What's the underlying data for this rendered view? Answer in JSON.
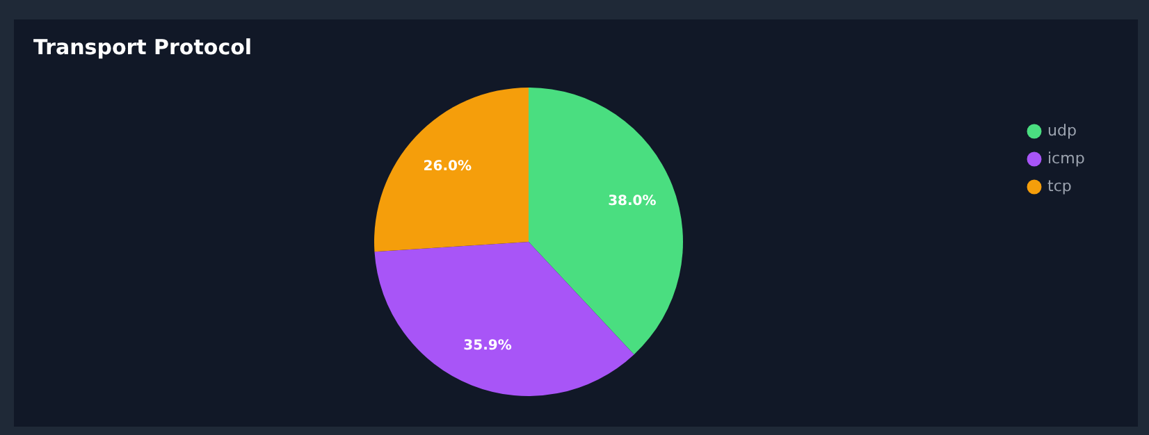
{
  "chart_data": {
    "type": "pie",
    "title": "Transport Protocol",
    "categories": [
      "udp",
      "icmp",
      "tcp"
    ],
    "values": [
      38.0,
      35.9,
      26.0
    ],
    "colors": [
      "#4ade80",
      "#a855f7",
      "#f59e0b"
    ],
    "value_labels": [
      "38.0%",
      "35.9%",
      "26.0%"
    ],
    "legend": "top right"
  }
}
